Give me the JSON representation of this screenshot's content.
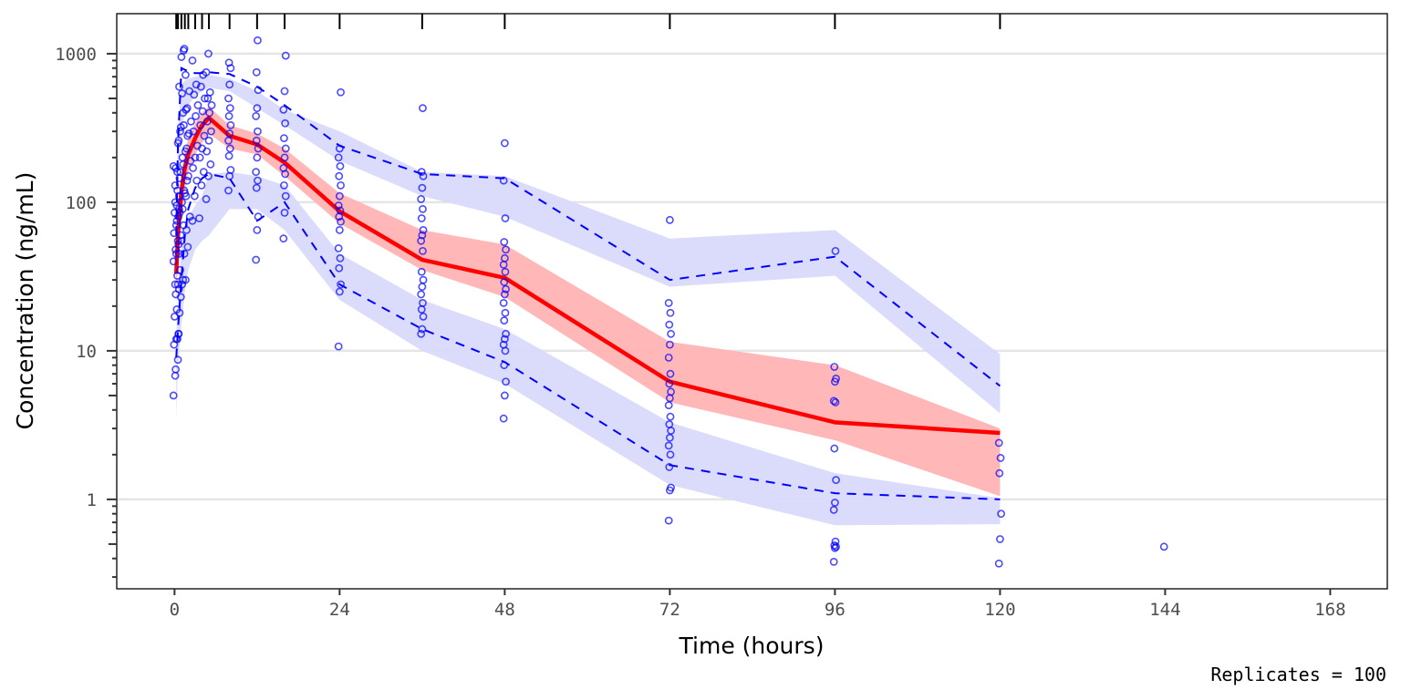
{
  "chart_data": {
    "type": "scatter",
    "title": "",
    "xlabel": "Time (hours)",
    "ylabel": "Concentration (ng/mL)",
    "caption": "Replicates = 100",
    "xscale": "linear",
    "yscale": "log10",
    "xlim": [
      -8.4,
      176.3
    ],
    "ylim": [
      0.25,
      1860
    ],
    "x_ticks": [
      0,
      24,
      48,
      72,
      96,
      120,
      144,
      168
    ],
    "x_tick_labels": [
      "0",
      "24",
      "48",
      "72",
      "96",
      "120",
      "144",
      "168"
    ],
    "y_ticks": [
      1,
      10,
      100,
      1000
    ],
    "y_tick_labels": [
      "1",
      "10",
      "100",
      "1000"
    ],
    "grid": "horizontal major",
    "rug_times": [
      0.25,
      0.5,
      1,
      1.5,
      2,
      3,
      4,
      5,
      8,
      12,
      16,
      24,
      36,
      48,
      72,
      96,
      120
    ],
    "colors": {
      "observed": "#0000ff",
      "median_line": "#ff0000",
      "median_ci": "#ffb3b3",
      "percentile_line": "#0000ff",
      "percentile_ci": "#d9d9fb",
      "grid": "#e5e5e5",
      "axis": "#000000"
    },
    "bin_times": [
      0.25,
      0.5,
      1,
      1.5,
      2,
      3,
      4,
      5,
      8,
      12,
      16,
      24,
      36,
      48,
      72,
      96,
      120
    ],
    "series": [
      {
        "name": "Observed median",
        "style": "solid",
        "values": [
          33,
          60,
          120,
          170,
          210,
          270,
          330,
          370,
          280,
          245,
          185,
          87,
          41,
          31,
          6.2,
          3.3,
          2.8
        ]
      },
      {
        "name": "Observed 95th percentile",
        "style": "dashed",
        "values": [
          60,
          250,
          800,
          780,
          760,
          740,
          740,
          750,
          730,
          600,
          450,
          240,
          155,
          145,
          30,
          43,
          5.8
        ]
      },
      {
        "name": "Observed 5th percentile",
        "style": "dashed",
        "values": [
          9,
          14,
          30,
          60,
          90,
          125,
          145,
          155,
          145,
          75,
          100,
          28,
          14,
          8.4,
          1.7,
          1.1,
          1.0
        ]
      }
    ],
    "ci_bands": [
      {
        "name": "Median CI",
        "lower": [
          20,
          40,
          80,
          120,
          160,
          210,
          250,
          290,
          230,
          210,
          150,
          72,
          35,
          23,
          4.5,
          2.5,
          1.05
        ],
        "upper": [
          45,
          80,
          160,
          220,
          270,
          340,
          400,
          440,
          330,
          290,
          230,
          115,
          65,
          52,
          11.5,
          8,
          3
        ]
      },
      {
        "name": "95th percentile CI",
        "lower": [
          40,
          120,
          300,
          400,
          450,
          520,
          560,
          590,
          560,
          430,
          330,
          190,
          110,
          80,
          27,
          32,
          3.8
        ],
        "upper": [
          90,
          300,
          620,
          660,
          680,
          700,
          710,
          720,
          680,
          560,
          420,
          300,
          160,
          150,
          57,
          65,
          9.5
        ]
      },
      {
        "name": "5th percentile CI",
        "lower": [
          3.5,
          8,
          15,
          25,
          35,
          48,
          55,
          60,
          90,
          90,
          65,
          22,
          10,
          6,
          1.25,
          0.67,
          0.68
        ],
        "upper": [
          12,
          25,
          50,
          70,
          80,
          95,
          110,
          155,
          160,
          150,
          130,
          45,
          22,
          14,
          3.3,
          1.5,
          1.02
        ]
      }
    ],
    "observed": [
      {
        "t": 0.25,
        "values": [
          5,
          7.5,
          8.7,
          11,
          12,
          13,
          17,
          19,
          26,
          28,
          32,
          40,
          48,
          55,
          62,
          70,
          80,
          85,
          95,
          110,
          130,
          160,
          175
        ]
      },
      {
        "t": 0.5,
        "values": [
          6.8,
          12,
          18,
          24,
          28,
          35,
          45,
          52,
          60,
          75,
          90,
          100,
          120,
          145,
          170,
          250,
          300
        ]
      },
      {
        "t": 1,
        "values": [
          13,
          23,
          30,
          45,
          55,
          70,
          85,
          100,
          120,
          160,
          200,
          260,
          320,
          400,
          600,
          950,
          1050
        ]
      },
      {
        "t": 1.5,
        "values": [
          28,
          45,
          65,
          90,
          115,
          140,
          180,
          220,
          280,
          330,
          420,
          540,
          1080
        ]
      },
      {
        "t": 2,
        "values": [
          30,
          50,
          80,
          110,
          150,
          190,
          230,
          290,
          350,
          430,
          560,
          720
        ]
      },
      {
        "t": 3,
        "values": [
          75,
          110,
          140,
          170,
          200,
          240,
          300,
          380,
          450,
          530,
          620,
          900
        ]
      },
      {
        "t": 4,
        "values": [
          78,
          130,
          160,
          200,
          230,
          280,
          330,
          410,
          500,
          600,
          720
        ]
      },
      {
        "t": 5,
        "values": [
          105,
          150,
          180,
          220,
          260,
          300,
          350,
          400,
          450,
          500,
          550,
          750,
          1000
        ]
      },
      {
        "t": 8,
        "values": [
          120,
          150,
          165,
          205,
          230,
          260,
          290,
          330,
          380,
          430,
          500,
          620,
          800,
          870
        ]
      },
      {
        "t": 12,
        "values": [
          41,
          65,
          80,
          125,
          140,
          160,
          200,
          230,
          260,
          300,
          380,
          430,
          570,
          750,
          1230
        ]
      },
      {
        "t": 16,
        "values": [
          57,
          85,
          110,
          130,
          155,
          170,
          200,
          230,
          270,
          340,
          420,
          560,
          970
        ]
      },
      {
        "t": 24,
        "values": [
          10.7,
          25,
          28,
          36,
          42,
          49,
          65,
          74,
          80,
          88,
          95,
          110,
          130,
          150,
          175,
          200,
          230,
          550
        ]
      },
      {
        "t": 36,
        "values": [
          13,
          14,
          17,
          19,
          21,
          24,
          27,
          30,
          34,
          47,
          55,
          60,
          65,
          78,
          90,
          105,
          125,
          150,
          160,
          430
        ]
      },
      {
        "t": 48,
        "values": [
          3.5,
          5,
          6.2,
          8,
          10,
          11,
          12,
          13,
          16,
          18,
          21,
          24,
          26,
          29,
          34,
          38,
          42,
          48,
          54,
          78,
          140,
          250
        ]
      },
      {
        "t": 72,
        "values": [
          0.72,
          1.15,
          1.2,
          1.65,
          2,
          2.3,
          2.6,
          2.9,
          3.2,
          3.6,
          4.3,
          4.8,
          5.3,
          6,
          7,
          9,
          11,
          13,
          15,
          18,
          21,
          76
        ]
      },
      {
        "t": 96,
        "values": [
          0.38,
          0.47,
          0.48,
          0.49,
          0.52,
          0.85,
          0.95,
          1.35,
          2.2,
          4.5,
          4.6,
          6.2,
          6.5,
          7.8,
          47
        ]
      },
      {
        "t": 120,
        "values": [
          0.37,
          0.54,
          0.8,
          1.5,
          1.9,
          2.4
        ]
      },
      {
        "t": 144,
        "values": [
          0.48
        ]
      }
    ]
  }
}
